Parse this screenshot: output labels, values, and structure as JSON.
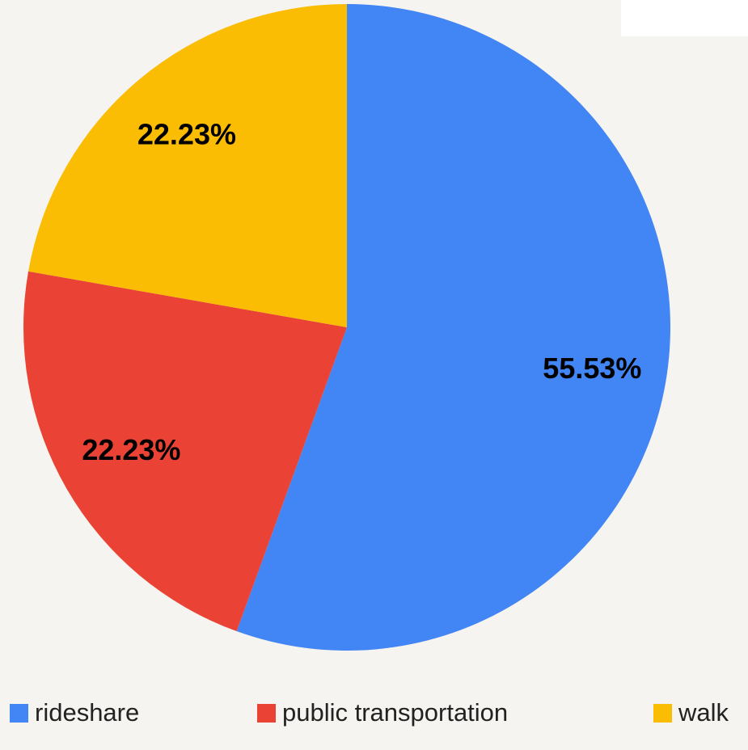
{
  "chart_data": {
    "type": "pie",
    "categories": [
      "rideshare",
      "public transportation",
      "walk"
    ],
    "values": [
      55.53,
      22.23,
      22.23
    ],
    "value_labels": [
      "55.53%",
      "22.23%",
      "22.23%"
    ],
    "colors": [
      "#4285f4",
      "#ea4335",
      "#fbbc04"
    ],
    "legend": "bottom"
  }
}
